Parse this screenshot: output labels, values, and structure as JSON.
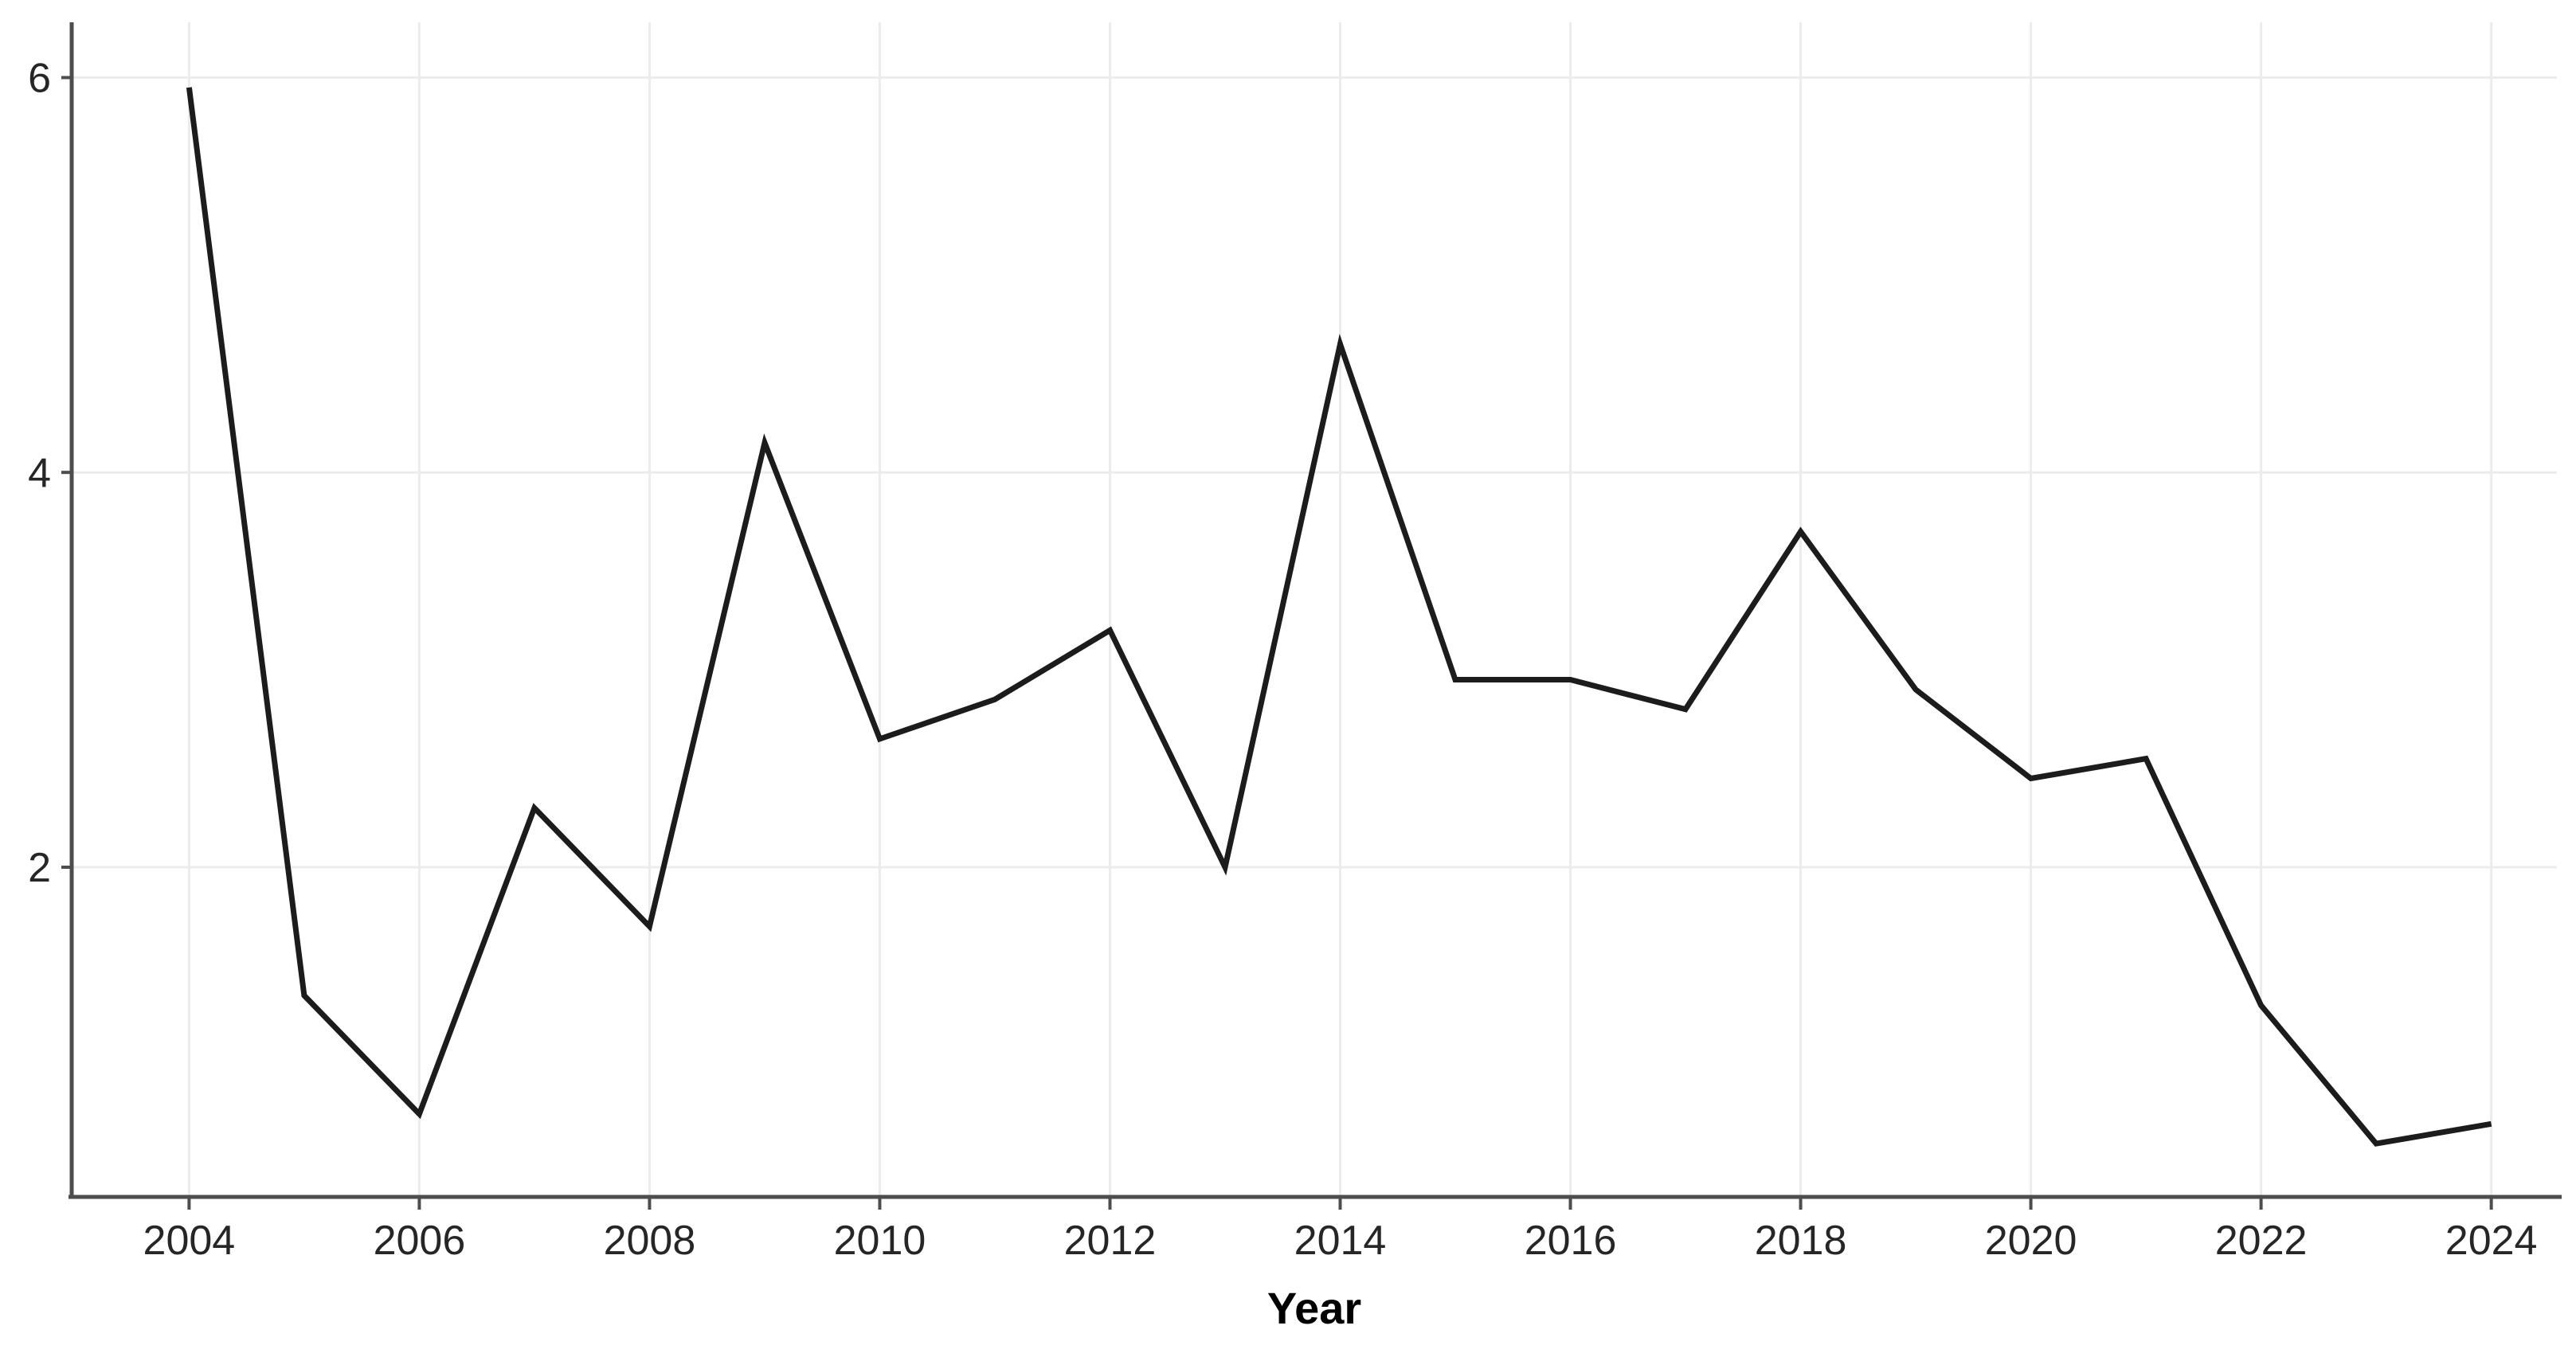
{
  "chart_data": {
    "type": "line",
    "title": "",
    "xlabel": "Year",
    "ylabel": "",
    "x": [
      2004,
      2005,
      2006,
      2007,
      2008,
      2009,
      2010,
      2011,
      2012,
      2013,
      2014,
      2015,
      2016,
      2017,
      2018,
      2019,
      2020,
      2021,
      2022,
      2023,
      2024
    ],
    "series": [
      {
        "name": "value",
        "values": [
          5.95,
          1.35,
          0.75,
          2.3,
          1.7,
          4.15,
          2.65,
          2.85,
          3.2,
          2.0,
          4.65,
          2.95,
          2.95,
          2.8,
          3.7,
          2.9,
          2.45,
          2.55,
          1.3,
          0.6,
          0.7
        ]
      }
    ],
    "x_ticks": [
      2004,
      2006,
      2008,
      2010,
      2012,
      2014,
      2016,
      2018,
      2020,
      2022,
      2024
    ],
    "y_ticks": [
      2,
      4,
      6
    ],
    "xlim": [
      2002.98,
      2024.57
    ],
    "ylim": [
      0.33,
      6.28
    ],
    "grid": "major-only",
    "legend": "none"
  },
  "colors": {
    "background": "#ffffff",
    "line": "#1c1c1c",
    "grid": "#ececec",
    "axis": "#4d4d4d",
    "tick_mark": "#4d4d4d",
    "tick_label": "#262626",
    "axis_title": "#000000"
  }
}
